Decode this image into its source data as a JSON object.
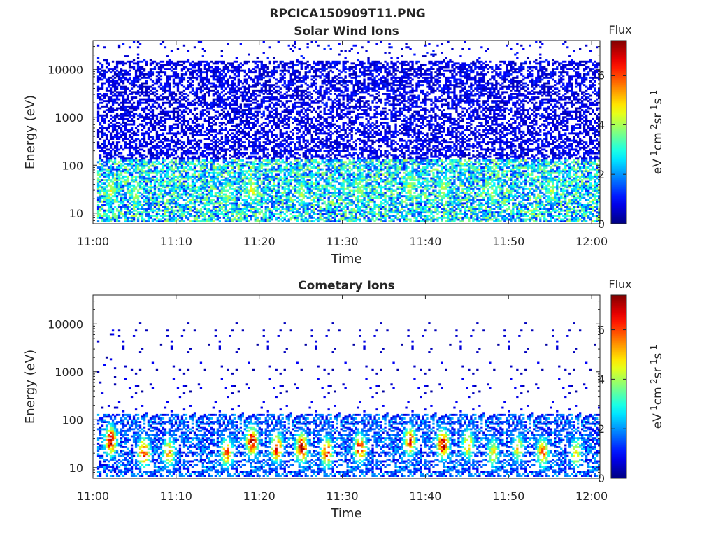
{
  "figure_title": "RPCICA150909T11.PNG",
  "colorbar_title": "Flux",
  "chart_data": [
    {
      "type": "heatmap",
      "title": "Solar Wind Ions",
      "xlabel": "Time",
      "ylabel": "Energy (eV)",
      "x_ticks": [
        "11:00",
        "11:10",
        "11:20",
        "11:30",
        "11:40",
        "11:50",
        "12:00"
      ],
      "x_range": [
        "11:00",
        "12:01"
      ],
      "y_scale": "log",
      "y_ticks": [
        10,
        100,
        1000,
        10000
      ],
      "y_tick_labels": [
        "10",
        "100",
        "1000",
        "10000"
      ],
      "y_range": [
        6,
        40000
      ],
      "colorbar": {
        "label": "eV-1cm-2sr-1s-1",
        "ticks": [
          0,
          2,
          4,
          6
        ],
        "range": [
          0,
          7.4
        ],
        "colormap": "jet"
      },
      "description_levels": {
        "high_energy_scatter_to_eV": 15000,
        "typical_flux_high": 1.0,
        "low_energy_band_flux": 3.5
      },
      "hotspots": [
        {
          "time": "11:02",
          "energy": 30,
          "flux": 4.5
        },
        {
          "time": "11:05",
          "energy": 25,
          "flux": 4.0
        },
        {
          "time": "11:16",
          "energy": 25,
          "flux": 4.0
        },
        {
          "time": "11:19",
          "energy": 30,
          "flux": 4.8
        },
        {
          "time": "11:25",
          "energy": 25,
          "flux": 4.2
        },
        {
          "time": "11:32",
          "energy": 30,
          "flux": 4.0
        },
        {
          "time": "11:38",
          "energy": 35,
          "flux": 4.5
        },
        {
          "time": "11:42",
          "energy": 30,
          "flux": 4.3
        },
        {
          "time": "11:48",
          "energy": 25,
          "flux": 4.0
        },
        {
          "time": "11:55",
          "energy": 30,
          "flux": 4.2
        }
      ]
    },
    {
      "type": "heatmap",
      "title": "Cometary Ions",
      "xlabel": "Time",
      "ylabel": "Energy (eV)",
      "x_ticks": [
        "11:00",
        "11:10",
        "11:20",
        "11:30",
        "11:40",
        "11:50",
        "12:00"
      ],
      "x_range": [
        "11:00",
        "12:01"
      ],
      "y_scale": "log",
      "y_ticks": [
        10,
        100,
        1000,
        10000
      ],
      "y_tick_labels": [
        "10",
        "100",
        "1000",
        "10000"
      ],
      "y_range": [
        6,
        40000
      ],
      "colorbar": {
        "label": "eV-1cm-2sr-1s-1",
        "ticks": [
          0,
          2,
          4,
          6
        ],
        "range": [
          0,
          7.4
        ],
        "colormap": "jet"
      },
      "description_levels": {
        "high_energy_scatter_to_eV": 10000,
        "typical_flux_high": 0.8,
        "low_energy_band_flux": 2.0
      },
      "hotspots": [
        {
          "time": "11:02",
          "energy": 35,
          "flux": 7.0
        },
        {
          "time": "11:06",
          "energy": 20,
          "flux": 6.5
        },
        {
          "time": "11:09",
          "energy": 20,
          "flux": 5.5
        },
        {
          "time": "11:16",
          "energy": 20,
          "flux": 6.0
        },
        {
          "time": "11:19",
          "energy": 35,
          "flux": 7.0
        },
        {
          "time": "11:22",
          "energy": 25,
          "flux": 6.5
        },
        {
          "time": "11:25",
          "energy": 25,
          "flux": 7.0
        },
        {
          "time": "11:28",
          "energy": 20,
          "flux": 6.5
        },
        {
          "time": "11:32",
          "energy": 25,
          "flux": 6.5
        },
        {
          "time": "11:38",
          "energy": 35,
          "flux": 6.5
        },
        {
          "time": "11:42",
          "energy": 30,
          "flux": 7.0
        },
        {
          "time": "11:45",
          "energy": 30,
          "flux": 5.5
        },
        {
          "time": "11:48",
          "energy": 20,
          "flux": 5.0
        },
        {
          "time": "11:51",
          "energy": 25,
          "flux": 5.0
        },
        {
          "time": "11:54",
          "energy": 20,
          "flux": 6.0
        },
        {
          "time": "11:58",
          "energy": 20,
          "flux": 5.0
        }
      ]
    }
  ]
}
